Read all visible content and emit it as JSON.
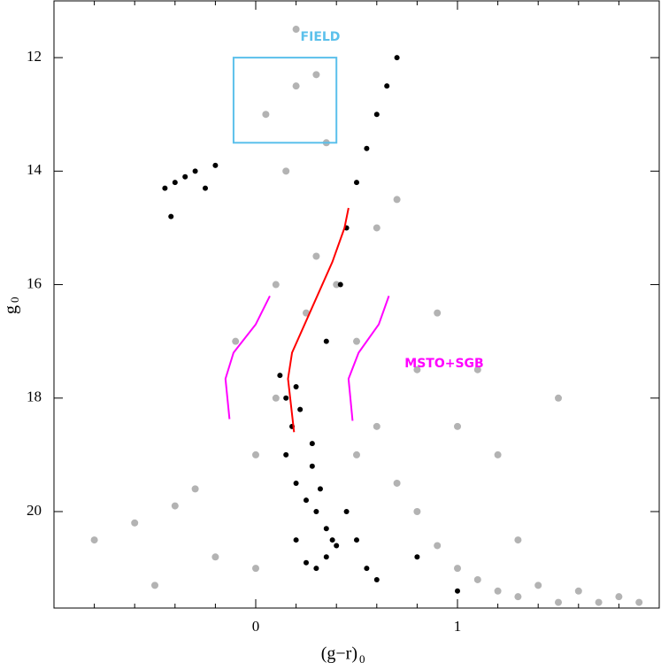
{
  "chart_data": {
    "type": "scatter",
    "x_label": {
      "text": "(g−r)",
      "subscript": "0"
    },
    "y_label": {
      "text": "g",
      "subscript": "0"
    },
    "annotations": [
      {
        "text": "FIELD",
        "color": "#5bc0eb"
      },
      {
        "text": "MSTO+SGB",
        "color": "#ff00ff"
      }
    ],
    "xlim": [
      -1.0,
      2.0
    ],
    "ylim": [
      21.7,
      11.0
    ],
    "xticks": [
      0,
      1
    ],
    "yticks": [
      12,
      14,
      16,
      18,
      20
    ],
    "xticks_minor": [
      -0.8,
      -0.6,
      -0.4,
      -0.2,
      0.2,
      0.4,
      0.6,
      0.8,
      1.2,
      1.4,
      1.6,
      1.8
    ],
    "series": [
      {
        "type": "scatter",
        "color": "#b3b3b3",
        "x": [
          -0.8,
          -0.6,
          -0.4,
          -0.2,
          -0.5,
          -0.3,
          0.0,
          0.1,
          0.2,
          0.05,
          0.15,
          0.3,
          0.25,
          0.35,
          0.5,
          0.6,
          0.7,
          0.8,
          0.9,
          1.0,
          1.1,
          1.2,
          1.3,
          1.4,
          1.5,
          1.6,
          1.7,
          1.8,
          1.9,
          0.4,
          0.6,
          0.8,
          1.0,
          1.2,
          0.2,
          0.3,
          0.9,
          1.1,
          0.7,
          0.5,
          -0.1,
          0.1,
          1.3,
          1.5,
          0.0
        ],
        "values": [
          20.5,
          20.2,
          19.9,
          20.8,
          21.3,
          19.6,
          19.0,
          18.0,
          12.5,
          13.0,
          14.0,
          15.5,
          16.5,
          13.5,
          17.0,
          18.5,
          19.5,
          20.0,
          20.6,
          21.0,
          21.2,
          21.4,
          21.5,
          21.3,
          21.6,
          21.4,
          21.6,
          21.5,
          21.6,
          16.0,
          15.0,
          17.5,
          18.5,
          19.0,
          11.5,
          12.3,
          16.5,
          17.5,
          14.5,
          19.0,
          17.0,
          16.0,
          20.5,
          18.0,
          21.0
        ]
      },
      {
        "type": "scatter",
        "color": "#000000",
        "x": [
          0.15,
          0.2,
          0.25,
          0.3,
          0.35,
          0.18,
          0.22,
          0.28,
          0.32,
          0.38,
          0.25,
          0.3,
          0.35,
          0.4,
          0.45,
          0.5,
          0.55,
          0.6,
          0.2,
          0.15,
          0.12,
          0.2,
          0.28,
          0.35,
          0.42,
          0.45,
          0.5,
          0.55,
          0.6,
          0.65,
          0.7,
          -0.45,
          -0.4,
          -0.35,
          -0.3,
          -0.25,
          -0.42,
          -0.2,
          0.8,
          1.0
        ],
        "values": [
          19.0,
          19.5,
          19.8,
          20.0,
          20.3,
          18.5,
          18.2,
          19.2,
          19.6,
          20.5,
          20.9,
          21.0,
          20.8,
          20.6,
          20.0,
          20.5,
          21.0,
          21.2,
          17.8,
          18.0,
          17.6,
          20.5,
          18.8,
          17.0,
          16.0,
          15.0,
          14.2,
          13.6,
          13.0,
          12.5,
          12.0,
          14.3,
          14.2,
          14.1,
          14.0,
          14.3,
          14.8,
          13.9,
          20.8,
          21.4
        ]
      },
      {
        "type": "line",
        "color": "#ff00ff",
        "x": [
          -0.13,
          -0.15,
          -0.11,
          0.0,
          0.07
        ],
        "values": [
          18.37,
          17.66,
          17.2,
          16.7,
          16.2
        ]
      },
      {
        "type": "line",
        "color": "#ff00ff",
        "x": [
          0.48,
          0.46,
          0.51,
          0.61,
          0.66
        ],
        "values": [
          18.4,
          17.66,
          17.2,
          16.7,
          16.2
        ]
      },
      {
        "type": "line",
        "color": "#ff0000",
        "x": [
          0.19,
          0.16,
          0.18,
          0.28,
          0.38,
          0.44,
          0.46
        ],
        "values": [
          18.6,
          17.66,
          17.2,
          16.4,
          15.6,
          15.0,
          14.65
        ]
      },
      {
        "type": "rect",
        "color": "#5bc0eb",
        "x": [
          -0.11,
          0.4
        ],
        "values": [
          12.0,
          13.5
        ]
      }
    ]
  }
}
